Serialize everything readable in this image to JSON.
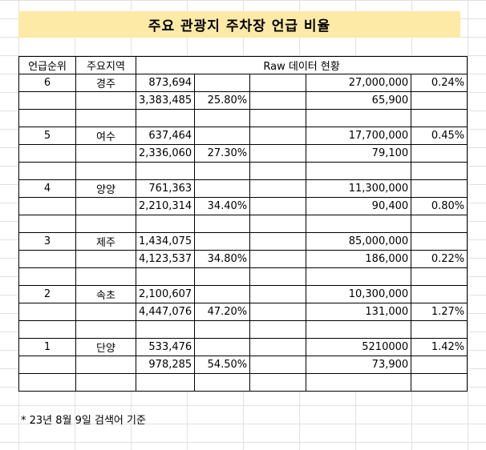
{
  "title": "주요 관광지 주차장 언급 비율",
  "header": {
    "rank": "언급순위",
    "region": "주요지역",
    "raw": "Raw 데이터 현황"
  },
  "rows": [
    {
      "rank": "6",
      "region": "경주",
      "top": [
        "873,694",
        "",
        "",
        "27,000,000",
        "0.24%"
      ],
      "bottom": [
        "3,383,485",
        "25.80%",
        "",
        "65,900",
        ""
      ]
    },
    {
      "rank": "5",
      "region": "여수",
      "top": [
        "637,464",
        "",
        "",
        "17,700,000",
        "0.45%"
      ],
      "bottom": [
        "2,336,060",
        "27.30%",
        "",
        "79,100",
        ""
      ]
    },
    {
      "rank": "4",
      "region": "양양",
      "top": [
        "761,363",
        "",
        "",
        "11,300,000",
        ""
      ],
      "bottom": [
        "2,210,314",
        "34.40%",
        "",
        "90,400",
        "0.80%"
      ]
    },
    {
      "rank": "3",
      "region": "제주",
      "top": [
        "1,434,075",
        "",
        "",
        "85,000,000",
        ""
      ],
      "bottom": [
        "4,123,537",
        "34.80%",
        "",
        "186,000",
        "0.22%"
      ]
    },
    {
      "rank": "2",
      "region": "속초",
      "top": [
        "2,100,607",
        "",
        "",
        "10,300,000",
        ""
      ],
      "bottom": [
        "4,447,076",
        "47.20%",
        "",
        "131,000",
        "1.27%"
      ]
    },
    {
      "rank": "1",
      "region": "단양",
      "top": [
        "533,476",
        "",
        "",
        "5210000",
        "1.42%"
      ],
      "bottom": [
        "978,285",
        "54.50%",
        "",
        "73,900",
        ""
      ]
    }
  ],
  "footnote": "* 23년 8월 9일 검색어 기준"
}
